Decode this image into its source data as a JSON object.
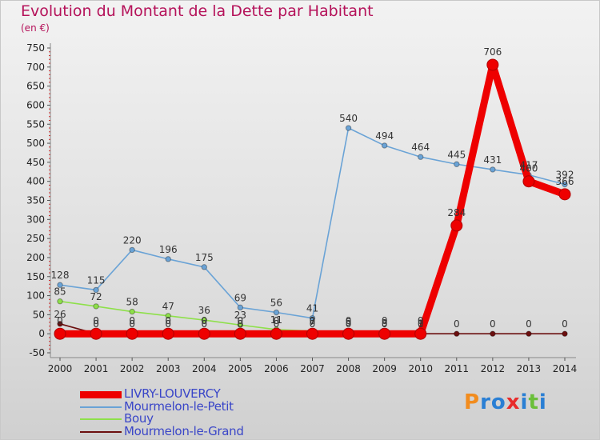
{
  "header": {
    "title": "Evolution du Montant de la Dette par Habitant",
    "subtitle": "(en €)"
  },
  "chart_data": {
    "type": "line",
    "title": "Evolution du Montant de la Dette par Habitant",
    "ylabel": "(en €)",
    "xlabel": "",
    "ylim": [
      -50,
      750
    ],
    "yticks": [
      -50,
      0,
      50,
      100,
      150,
      200,
      250,
      300,
      350,
      400,
      450,
      500,
      550,
      600,
      650,
      700,
      750
    ],
    "grid": false,
    "legend_position": "bottom-left",
    "categories": [
      "2000",
      "2001",
      "2002",
      "2003",
      "2004",
      "2005",
      "2006",
      "2007",
      "2008",
      "2009",
      "2010",
      "2011",
      "2012",
      "2013",
      "2014"
    ],
    "series": [
      {
        "name": "Mourmelon-le-Grand",
        "color": "#6b0f0f",
        "values": [
          26,
          0,
          0,
          0,
          0,
          0,
          0,
          0,
          0,
          0,
          0,
          0,
          0,
          0,
          0
        ],
        "labels": [
          "26",
          "0",
          "0",
          "0",
          "0",
          "0",
          "0",
          "0",
          "0",
          "0",
          "0",
          "0",
          "0",
          "0",
          "0"
        ]
      },
      {
        "name": "Bouy",
        "color": "#8ee04a",
        "values": [
          85,
          72,
          58,
          47,
          36,
          23,
          11,
          7,
          5,
          3,
          1,
          null,
          null,
          null,
          null
        ],
        "labels": [
          "85",
          "72",
          "58",
          "47",
          "36",
          "23",
          "11",
          "7",
          "5",
          "3",
          "1",
          "",
          "",
          "",
          ""
        ]
      },
      {
        "name": "Mourmelon-le-Petit",
        "color": "#6aa3d6",
        "values": [
          128,
          115,
          220,
          196,
          175,
          69,
          56,
          41,
          540,
          494,
          464,
          445,
          431,
          417,
          392
        ],
        "labels": [
          "128",
          "115",
          "220",
          "196",
          "175",
          "69",
          "56",
          "41",
          "540",
          "494",
          "464",
          "445",
          "431",
          "417",
          "392"
        ]
      },
      {
        "name": "LIVRY-LOUVERCY",
        "color": "#ee0000",
        "values": [
          0,
          0,
          0,
          0,
          0,
          0,
          0,
          0,
          0,
          0,
          0,
          284,
          706,
          400,
          366
        ],
        "labels": [
          "0",
          "0",
          "0",
          "0",
          "0",
          "0",
          "0",
          "0",
          "0",
          "0",
          "0",
          "284",
          "706",
          "400",
          "366"
        ]
      }
    ]
  },
  "legend": {
    "items": [
      {
        "label": "LIVRY-LOUVERCY",
        "color": "#ee0000",
        "weight": 9
      },
      {
        "label": "Mourmelon-le-Petit",
        "color": "#6aa3d6",
        "weight": 2
      },
      {
        "label": "Bouy",
        "color": "#8ee04a",
        "weight": 2
      },
      {
        "label": "Mourmelon-le-Grand",
        "color": "#6b0f0f",
        "weight": 2
      }
    ]
  },
  "logo": {
    "letters": [
      "P",
      "r",
      "o",
      "x",
      "i",
      "t",
      "i"
    ],
    "colors": [
      "#f28c1e",
      "#2a7fd4",
      "#2a7fd4",
      "#e82c2c",
      "#2a7fd4",
      "#6bbf3a",
      "#2a7fd4"
    ]
  }
}
